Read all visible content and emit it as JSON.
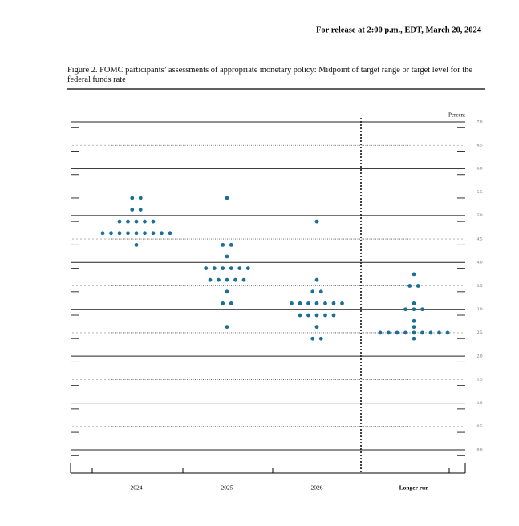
{
  "header": {
    "release": "For release at 2:00 p.m., EDT, March 20, 2024"
  },
  "chart_data": {
    "type": "dot",
    "title": "Figure 2. FOMC participants’ assessments of appropriate monetary policy: Midpoint of target range or target level for the federal funds rate",
    "y_label": "Percent",
    "categories": [
      "2024",
      "2025",
      "2026",
      "Longer run"
    ],
    "values": [
      [
        5.375,
        5.375,
        5.125,
        5.125,
        4.875,
        4.875,
        4.875,
        4.875,
        4.875,
        4.625,
        4.625,
        4.625,
        4.625,
        4.625,
        4.625,
        4.625,
        4.625,
        4.625,
        4.375
      ],
      [
        5.375,
        4.375,
        4.375,
        4.125,
        3.875,
        3.875,
        3.875,
        3.875,
        3.875,
        3.875,
        3.625,
        3.625,
        3.625,
        3.625,
        3.625,
        3.375,
        3.125,
        3.125,
        2.625
      ],
      [
        4.875,
        3.625,
        3.375,
        3.375,
        3.125,
        3.125,
        3.125,
        3.125,
        3.125,
        3.125,
        3.125,
        2.875,
        2.875,
        2.875,
        2.875,
        2.875,
        2.625,
        2.375,
        2.375
      ],
      [
        3.75,
        3.5,
        3.5,
        3.125,
        3.0,
        3.0,
        3.0,
        2.75,
        2.625,
        2.5,
        2.5,
        2.5,
        2.5,
        2.5,
        2.5,
        2.5,
        2.5,
        2.5,
        2.375
      ]
    ],
    "color": "#1b6f97",
    "ylim": [
      0,
      7
    ],
    "yticks": [
      {
        "value": 0,
        "label": "0.0"
      },
      0.5,
      {
        "value": 1,
        "label": "1.0"
      },
      1.5,
      {
        "value": 2,
        "label": "2.0"
      },
      2.5,
      {
        "value": 3,
        "label": "3.0"
      },
      3.5,
      {
        "value": 4,
        "label": "4.0"
      },
      4.5,
      {
        "value": 5,
        "label": "5.0"
      },
      5.5,
      {
        "value": 6,
        "label": "6.0"
      },
      6.5,
      {
        "value": 7,
        "label": "7.0"
      }
    ],
    "grid": true
  }
}
